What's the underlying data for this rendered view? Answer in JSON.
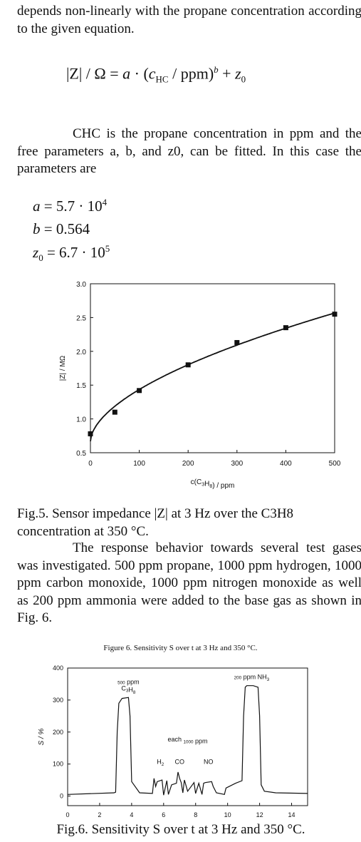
{
  "paragraphs": {
    "p1": "depends non-linearly with the propane concentration according to the given equation.",
    "p2": "CHC is the propane concentration in ppm and the free parameters a, b, and z0, can be fitted. In this case the parameters are",
    "p3": "The response behavior towards several test gases was investigated. 500 ppm propane, 1000 ppm hydrogen, 1000 ppm carbon monoxide, 1000 ppm nitrogen monoxide as well as 200 ppm ammonia were added to the base gas as shown in Fig. 6."
  },
  "equation": {
    "lhs": "|Z| / Ω = ",
    "a": "a",
    "dot": " · (",
    "c": "c",
    "sub_hc": "HC",
    "ppm": " / ppm)",
    "exp_b": "b",
    "plus": " + ",
    "z": "z",
    "sub_0": "0"
  },
  "params": {
    "a_lhs": "a",
    "a_rhs": " = 5.7 · 10",
    "a_exp": "4",
    "b_lhs": "b",
    "b_rhs": " = 0.564",
    "z_lhs": "z",
    "z_sub": "0",
    "z_rhs": " = 6.7 · 10",
    "z_exp": "5"
  },
  "captions": {
    "fig5": "Fig.5. Sensor impedance |Z| at 3 Hz over the C3H8 concentration at 350 °C.",
    "fig6_title": "Figure 6. Sensitivity S over t at 3 Hz and 350 °C.",
    "fig6": "Fig.6. Sensitivity S over t at 3 Hz and 350 °C."
  },
  "colors": {
    "ink": "#111111",
    "background": "#ffffff"
  },
  "chart_data": [
    {
      "type": "scatter",
      "title": "",
      "xlabel": "c(C3H8) / ppm",
      "ylabel": "|Z| / MΩ",
      "xlim": [
        0,
        500
      ],
      "ylim": [
        0.5,
        3.0
      ],
      "x_ticks": [
        0,
        100,
        200,
        300,
        400,
        500
      ],
      "y_ticks": [
        0.5,
        1.0,
        1.5,
        2.0,
        2.5,
        3.0
      ],
      "x_tick_labels": [
        "0",
        "100",
        "200",
        "300",
        "400",
        "500"
      ],
      "y_tick_labels": [
        "0.5",
        "1.0",
        "1.5",
        "2.0",
        "2.5",
        "3.0"
      ],
      "grid": false,
      "points": [
        {
          "x": 0,
          "y": 0.78
        },
        {
          "x": 50,
          "y": 1.1
        },
        {
          "x": 100,
          "y": 1.42
        },
        {
          "x": 200,
          "y": 1.8
        },
        {
          "x": 300,
          "y": 2.13
        },
        {
          "x": 400,
          "y": 2.35
        },
        {
          "x": 500,
          "y": 2.55
        }
      ],
      "fit": {
        "a": 57000,
        "b": 0.564,
        "z0": 670000
      }
    },
    {
      "type": "line",
      "title": "Figure 6. Sensitivity S over t at 3 Hz and 350 °C.",
      "xlabel": "",
      "ylabel": "S / %",
      "xlim": [
        0,
        15
      ],
      "ylim": [
        -30,
        400
      ],
      "x_ticks": [
        0,
        2,
        4,
        6,
        8,
        10,
        12,
        14
      ],
      "y_ticks": [
        0,
        100,
        200,
        300,
        400
      ],
      "x_tick_labels": [
        "0",
        "2",
        "4",
        "6",
        "8",
        "10",
        "12",
        "14"
      ],
      "y_tick_labels": [
        "0",
        "100",
        "200",
        "300",
        "400"
      ],
      "grid": false,
      "annotations": [
        {
          "label": "500 ppm",
          "x": 3.8,
          "y": 355
        },
        {
          "label": "C3H8",
          "x": 3.8,
          "y": 330
        },
        {
          "label": "each 1000 ppm",
          "x": 7.5,
          "y": 170
        },
        {
          "label": "H2",
          "x": 5.8,
          "y": 100
        },
        {
          "label": "CO",
          "x": 7.0,
          "y": 100
        },
        {
          "label": "NO",
          "x": 8.8,
          "y": 100
        },
        {
          "label": "200 ppm NH3",
          "x": 11.5,
          "y": 370
        }
      ],
      "series": [
        {
          "x": [
            0,
            2.9,
            3.0,
            3.1,
            3.2,
            3.4,
            3.8,
            3.9,
            4.0,
            4.5,
            5.3,
            5.4,
            5.5,
            5.6,
            5.9,
            6.0,
            6.2,
            6.3,
            6.5,
            6.8,
            6.9,
            7.0,
            7.1,
            7.2,
            7.3,
            7.5,
            7.9,
            8.0,
            8.2,
            8.4,
            8.5,
            8.6,
            9.0,
            9.1,
            9.3,
            9.8,
            9.9,
            10.5,
            10.9,
            11.0,
            11.1,
            11.2,
            11.6,
            11.9,
            12.0,
            12.1,
            12.3,
            13.0,
            15.0
          ],
          "y": [
            5,
            10,
            12,
            200,
            290,
            305,
            308,
            250,
            45,
            10,
            8,
            55,
            30,
            45,
            50,
            3,
            48,
            5,
            35,
            40,
            75,
            55,
            42,
            10,
            50,
            15,
            42,
            8,
            40,
            5,
            40,
            42,
            45,
            30,
            10,
            5,
            25,
            40,
            48,
            250,
            340,
            345,
            345,
            340,
            250,
            35,
            15,
            10,
            8
          ]
        }
      ]
    }
  ]
}
